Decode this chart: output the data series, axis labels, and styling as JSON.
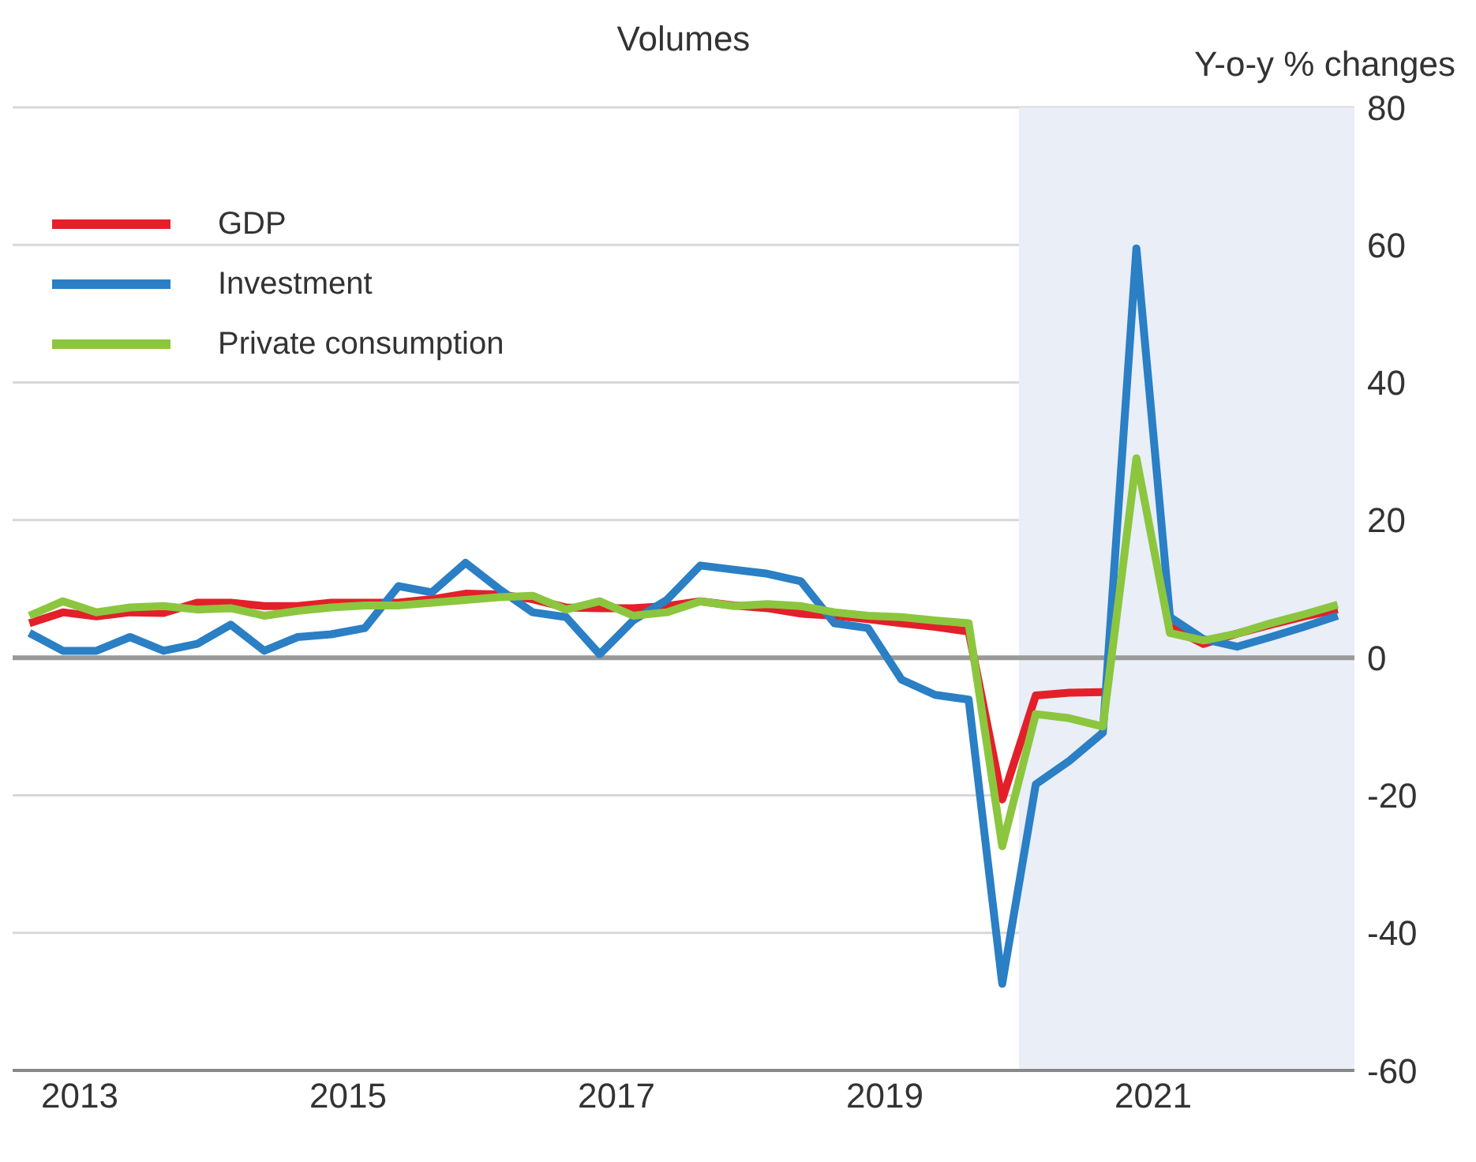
{
  "chart_data": {
    "type": "line",
    "title": "Volumes",
    "ylabel": "Y-o-y % changes",
    "x": [
      2013.125,
      2013.375,
      2013.625,
      2013.875,
      2014.125,
      2014.375,
      2014.625,
      2014.875,
      2015.125,
      2015.375,
      2015.625,
      2015.875,
      2016.125,
      2016.375,
      2016.625,
      2016.875,
      2017.125,
      2017.375,
      2017.625,
      2017.875,
      2018.125,
      2018.375,
      2018.625,
      2018.875,
      2019.125,
      2019.375,
      2019.625,
      2019.875,
      2020.125,
      2020.375,
      2020.625,
      2020.875,
      2021.125,
      2021.375,
      2021.625,
      2021.875,
      2022.125,
      2022.375,
      2022.625,
      2022.875
    ],
    "series": [
      {
        "name": "GDP",
        "color": "#e3202a",
        "values": [
          5,
          6.6,
          6,
          6.6,
          6.5,
          8,
          8,
          7.5,
          7.5,
          8,
          8,
          8,
          8.5,
          9.3,
          9.2,
          8.5,
          7.3,
          7.2,
          7.2,
          7.5,
          8.2,
          7.6,
          7.2,
          6.4,
          6.1,
          5.6,
          5,
          4.5,
          3.8,
          -20.6,
          -5.5,
          -5.1,
          -5,
          null,
          4.5,
          2,
          3.5,
          4.8,
          6,
          7
        ]
      },
      {
        "name": "Investment",
        "color": "#2a7fc5",
        "values": [
          3.6,
          1,
          1,
          3,
          1,
          2,
          4.8,
          1,
          3,
          3.4,
          4.3,
          10.4,
          9.5,
          13.8,
          10,
          6.6,
          5.9,
          0.5,
          5.4,
          8.4,
          13.4,
          12.8,
          12.2,
          11.1,
          5,
          4.3,
          -3.2,
          -5.4,
          -6.1,
          -47.4,
          -18.4,
          -15,
          -10.9,
          59.5,
          5.9,
          2.7,
          1.6,
          3,
          4.5,
          6.1
        ]
      },
      {
        "name": "Private consumption",
        "color": "#8cc63f",
        "values": [
          6.1,
          8.2,
          6.6,
          7.3,
          7.5,
          7,
          7.2,
          6.1,
          6.8,
          7.3,
          7.6,
          7.6,
          8,
          8.4,
          8.8,
          9,
          7,
          8.2,
          6.1,
          6.6,
          8.2,
          7.5,
          7.8,
          7.5,
          6.6,
          6.1,
          5.9,
          5.4,
          5,
          -27.4,
          -8.2,
          -8.8,
          -10,
          29,
          3.6,
          2.5,
          3.5,
          5,
          6.3,
          7.7
        ]
      }
    ],
    "xlim": [
      2013,
      2023
    ],
    "xticks": [
      {
        "value": 2013.5,
        "label": "2013"
      },
      {
        "value": 2015.5,
        "label": "2015"
      },
      {
        "value": 2017.5,
        "label": "2017"
      },
      {
        "value": 2019.5,
        "label": "2019"
      },
      {
        "value": 2021.5,
        "label": "2021"
      }
    ],
    "ylim": [
      -60,
      80
    ],
    "yticks": [
      -60,
      -40,
      -20,
      0,
      20,
      40,
      60,
      80
    ],
    "ref_lines": [
      {
        "axis": "y",
        "value": 0,
        "color": "#999999"
      }
    ],
    "bands": [
      {
        "axis": "x",
        "from": 2020.5,
        "to": 2023,
        "color": "#e9eef7"
      }
    ],
    "grid": "y",
    "legend": "top left",
    "line_style": "solid",
    "marker": "none"
  }
}
